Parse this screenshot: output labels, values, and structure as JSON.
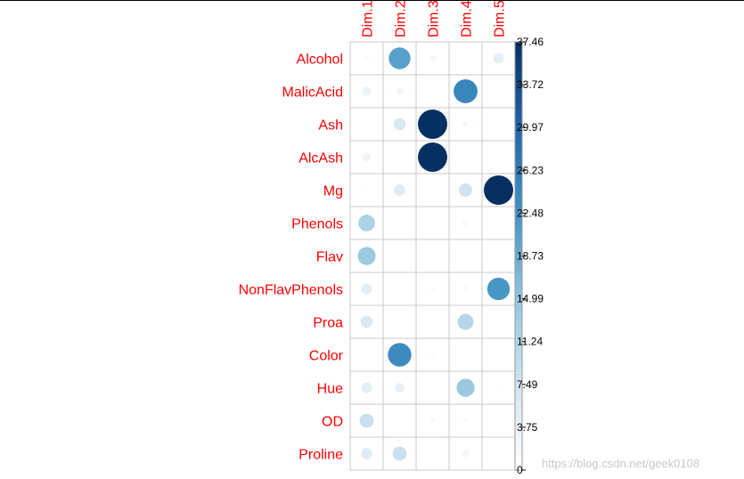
{
  "chart_data": {
    "type": "correlation-circle-matrix",
    "title": "",
    "rows": [
      "Alcohol",
      "MalicAcid",
      "Ash",
      "AlcAsh",
      "Mg",
      "Phenols",
      "Flav",
      "NonFlavPhenols",
      "Proa",
      "Color",
      "Hue",
      "OD",
      "Proline"
    ],
    "columns": [
      "Dim.1",
      "Dim.2",
      "Dim.3",
      "Dim.4",
      "Dim.5"
    ],
    "values": [
      [
        1.2,
        20.5,
        1.9,
        0.0,
        4.6
      ],
      [
        3.5,
        2.3,
        0.3,
        24.6,
        0.0
      ],
      [
        0.0,
        6.4,
        37.4,
        1.8,
        0.3
      ],
      [
        3.0,
        0.0,
        37.4,
        0.0,
        0.0
      ],
      [
        0.8,
        5.5,
        0.2,
        7.7,
        37.46
      ],
      [
        12.0,
        0.0,
        0.6,
        1.8,
        0.4
      ],
      [
        14.0,
        0.0,
        0.8,
        0.4,
        0.1
      ],
      [
        5.0,
        0.0,
        1.2,
        1.4,
        22.0
      ],
      [
        6.2,
        0.0,
        0.5,
        11.0,
        0.4
      ],
      [
        0.3,
        24.0,
        0.9,
        0.0,
        0.0
      ],
      [
        5.0,
        4.0,
        0.0,
        14.0,
        0.6
      ],
      [
        8.6,
        0.7,
        1.3,
        1.3,
        0.0
      ],
      [
        5.5,
        8.5,
        0.5,
        2.3,
        0.0
      ]
    ],
    "color_scale": {
      "min": 0,
      "max": 37.46,
      "ticks": [
        "0",
        "3.75",
        "7.49",
        "11.24",
        "14.99",
        "18.73",
        "22.48",
        "26.23",
        "29.97",
        "33.72",
        "37.46"
      ],
      "colors": [
        "#ffffff",
        "#d1e5f0",
        "#92c5de",
        "#4393c3",
        "#2166ac",
        "#053061"
      ]
    },
    "label_color": "#ff0000",
    "grid": true
  },
  "watermark": "https://blog.csdn.net/geek0108"
}
